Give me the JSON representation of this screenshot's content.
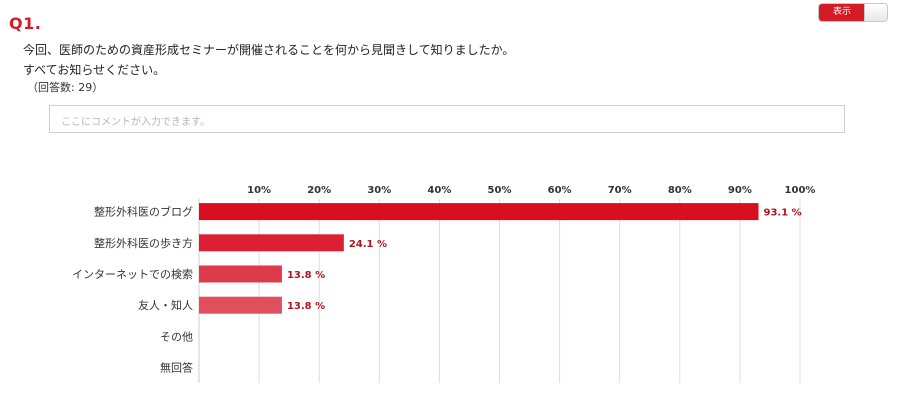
{
  "question": {
    "number": "Q1.",
    "text_line1": "今回、医師のための資産形成セミナーが開催されることを何から見聞きして知りましたか。",
    "text_line2": "すべてお知らせください。",
    "answer_count": "（回答数: 29）"
  },
  "toggle": {
    "label": "表示",
    "accent": "#d41c27"
  },
  "comment": {
    "placeholder": "ここにコメントが入力できます。"
  },
  "chart_data": {
    "type": "bar",
    "orientation": "horizontal",
    "categories": [
      "整形外科医のブログ",
      "整形外科医の歩き方",
      "インターネットでの検索",
      "友人・知人",
      "その他",
      "無回答"
    ],
    "values": [
      93.1,
      24.1,
      13.8,
      13.8,
      0,
      0
    ],
    "value_labels": [
      "93.1 %",
      "24.1 %",
      "13.8 %",
      "13.8 %",
      "",
      ""
    ],
    "xlim": [
      0,
      100
    ],
    "x_ticks": [
      10,
      20,
      30,
      40,
      50,
      60,
      70,
      80,
      90,
      100
    ],
    "x_tick_labels": [
      "10%",
      "20%",
      "30%",
      "40%",
      "50%",
      "60%",
      "70%",
      "80%",
      "90%",
      "100%"
    ],
    "axis_position": "top",
    "grid": true,
    "bar_colors": [
      "#d70f20",
      "#da2032",
      "#de3b4a",
      "#e0505c",
      "#e0505c",
      "#e0505c"
    ]
  }
}
